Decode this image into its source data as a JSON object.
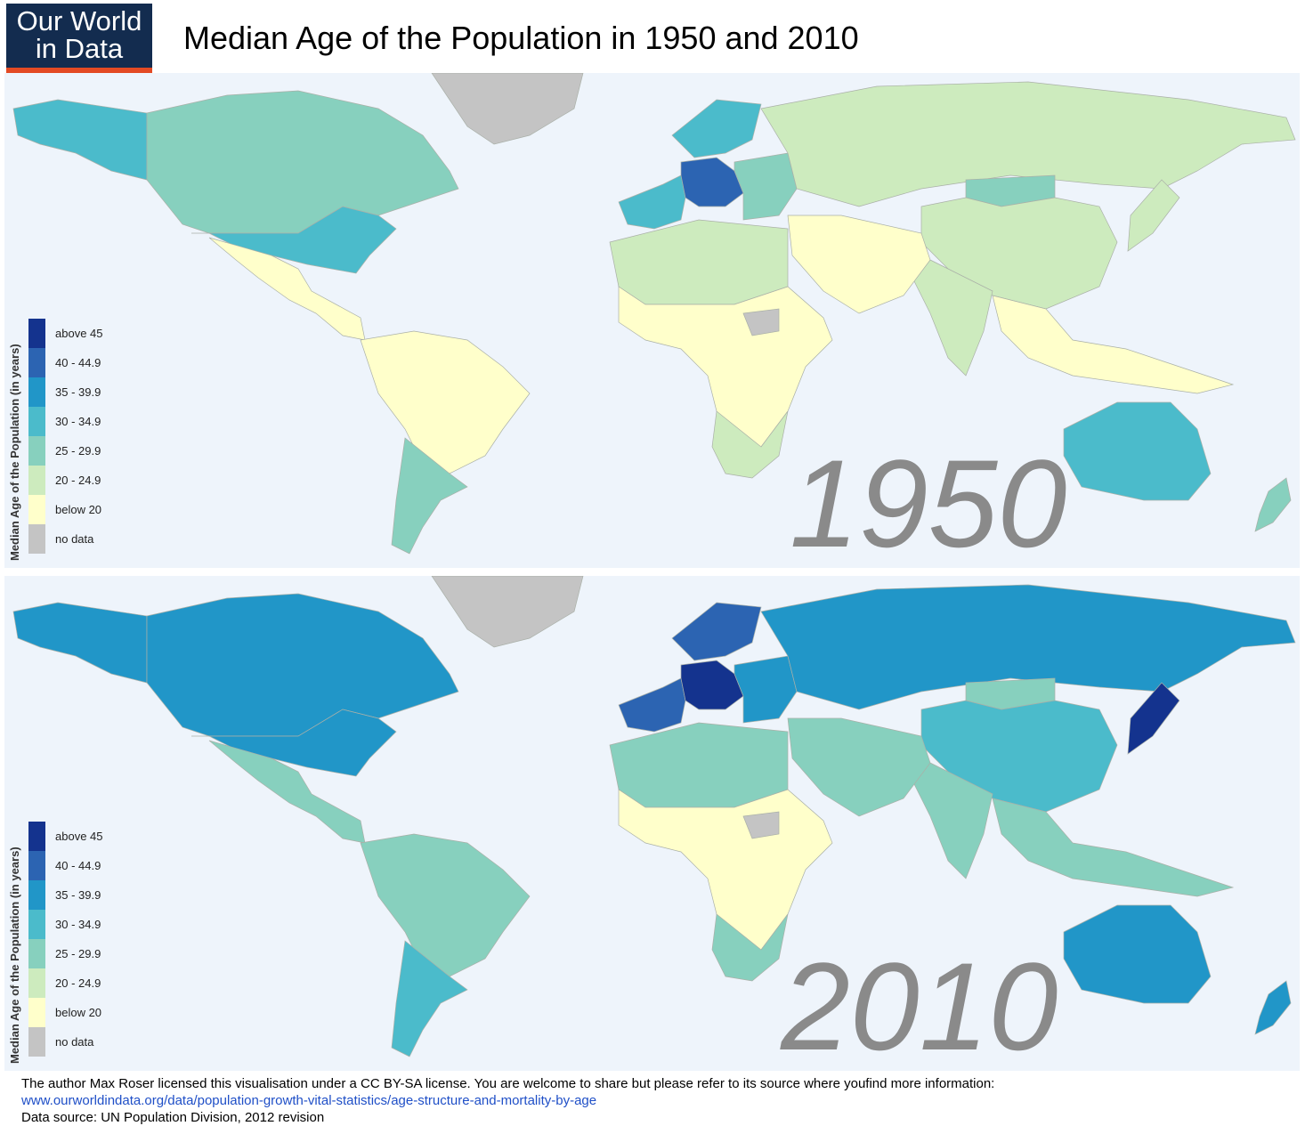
{
  "logo": {
    "line1": "Our World",
    "line2": "in Data",
    "bg": "#132c4f",
    "accent": "#e34a24"
  },
  "title": "Median Age of the Population in 1950 and 2010",
  "legend": {
    "title": "Median Age of the Population (in years)",
    "classes": [
      {
        "label": "above 45",
        "color": "#14338e"
      },
      {
        "label": "40 - 44.9",
        "color": "#2c64b2"
      },
      {
        "label": "35 - 39.9",
        "color": "#2196c8"
      },
      {
        "label": "30 - 34.9",
        "color": "#4bbbcb"
      },
      {
        "label": "25 - 29.9",
        "color": "#87d0be"
      },
      {
        "label": "20 - 24.9",
        "color": "#cdebbe"
      },
      {
        "label": "below 20",
        "color": "#ffffcb"
      },
      {
        "label": "no data",
        "color": "#c4c4c4"
      }
    ]
  },
  "ocean_color": "#eef4fb",
  "maps": [
    {
      "year": "1950",
      "regions": {
        "north_america": "30 - 34.9",
        "canada": "25 - 29.9",
        "alaska": "30 - 34.9",
        "greenland": "no data",
        "mexico_central_america": "below 20",
        "south_america": "below 20",
        "argentina": "25 - 29.9",
        "western_europe": "30 - 34.9",
        "central_europe": "40 - 44.9",
        "scandinavia": "30 - 34.9",
        "eastern_europe": "25 - 29.9",
        "russia": "20 - 24.9",
        "mongolia": "25 - 29.9",
        "china": "20 - 24.9",
        "india": "20 - 24.9",
        "middle_east": "below 20",
        "north_africa": "20 - 24.9",
        "sub_saharan_africa": "below 20",
        "south_africa": "20 - 24.9",
        "southeast_asia": "below 20",
        "japan": "20 - 24.9",
        "australia": "30 - 34.9",
        "new_zealand": "25 - 29.9",
        "south_sudan": "no data"
      }
    },
    {
      "year": "2010",
      "regions": {
        "north_america": "35 - 39.9",
        "canada": "35 - 39.9",
        "alaska": "35 - 39.9",
        "greenland": "no data",
        "mexico_central_america": "25 - 29.9",
        "south_america": "25 - 29.9",
        "argentina": "30 - 34.9",
        "western_europe": "40 - 44.9",
        "central_europe": "above 45",
        "scandinavia": "40 - 44.9",
        "eastern_europe": "35 - 39.9",
        "russia": "35 - 39.9",
        "mongolia": "25 - 29.9",
        "china": "30 - 34.9",
        "india": "25 - 29.9",
        "middle_east": "25 - 29.9",
        "north_africa": "25 - 29.9",
        "sub_saharan_africa": "below 20",
        "south_africa": "25 - 29.9",
        "southeast_asia": "25 - 29.9",
        "japan": "above 45",
        "australia": "35 - 39.9",
        "new_zealand": "35 - 39.9",
        "south_sudan": "no data"
      }
    }
  ],
  "footer": {
    "line1": "The author Max Roser licensed this visualisation under a CC BY-SA license. You are welcome to share but please refer to its source where youfind more information:",
    "link": "www.ourworldindata.org/data/population-growth-vital-statistics/age-structure-and-mortality-by-age",
    "line3": "Data source: UN Population Division, 2012 revision"
  }
}
